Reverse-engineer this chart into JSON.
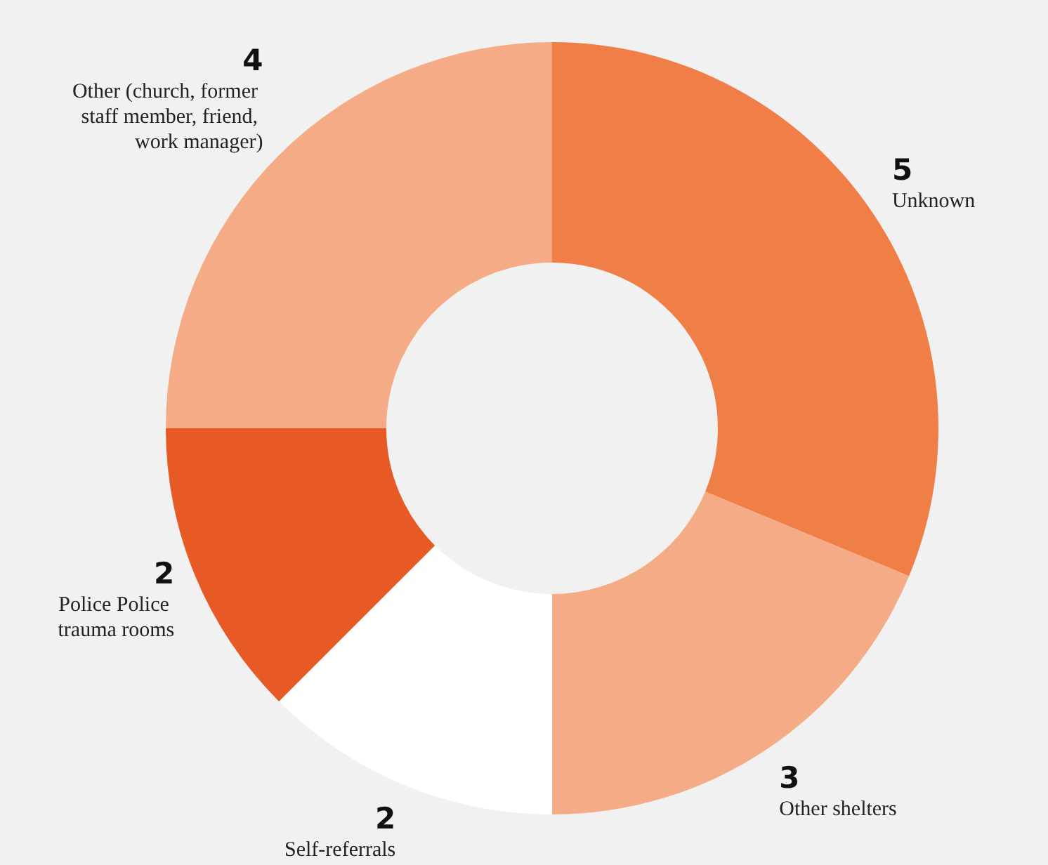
{
  "chart_data": {
    "type": "donut",
    "categories": [
      "Unknown",
      "Other shelters",
      "Self-referrals",
      "Police Police trauma rooms",
      "Other (church, former staff member, friend, work manager)"
    ],
    "values": [
      5,
      3,
      2,
      2,
      4
    ],
    "colors": [
      "#ef7f47",
      "#f5ab85",
      "#ffffff",
      "#e85a25",
      "#f5ab85"
    ],
    "data_labels": true,
    "legend": false
  }
}
